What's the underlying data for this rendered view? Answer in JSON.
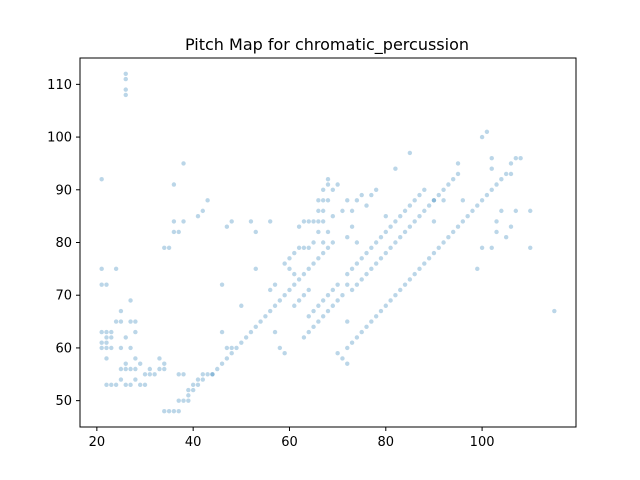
{
  "chart_data": {
    "type": "scatter",
    "title": "Pitch Map for chromatic_percussion",
    "xlabel": "",
    "ylabel": "",
    "xlim": [
      16.5,
      119.5
    ],
    "ylim": [
      45,
      115
    ],
    "xticks": [
      20,
      40,
      60,
      80,
      100
    ],
    "yticks": [
      50,
      60,
      70,
      80,
      90,
      100,
      110
    ],
    "grid": false,
    "marker_color": "#1f77b4",
    "marker_alpha": 0.3,
    "points": [
      [
        21,
        92
      ],
      [
        21,
        75
      ],
      [
        21,
        72
      ],
      [
        22,
        72
      ],
      [
        21,
        63
      ],
      [
        22,
        63
      ],
      [
        23,
        63
      ],
      [
        21,
        61
      ],
      [
        22,
        61
      ],
      [
        21,
        60
      ],
      [
        22,
        60
      ],
      [
        23,
        60
      ],
      [
        22,
        62
      ],
      [
        23,
        62
      ],
      [
        22,
        58
      ],
      [
        22,
        53
      ],
      [
        23,
        53
      ],
      [
        24,
        53
      ],
      [
        24,
        65
      ],
      [
        24,
        75
      ],
      [
        25,
        65
      ],
      [
        25,
        60
      ],
      [
        25,
        56
      ],
      [
        25,
        54
      ],
      [
        25,
        67
      ],
      [
        26,
        112
      ],
      [
        26,
        111
      ],
      [
        26,
        109
      ],
      [
        26,
        108
      ],
      [
        26,
        62
      ],
      [
        26,
        57
      ],
      [
        26,
        56
      ],
      [
        26,
        53
      ],
      [
        27,
        69
      ],
      [
        27,
        65
      ],
      [
        27,
        60
      ],
      [
        27,
        56
      ],
      [
        27,
        53
      ],
      [
        28,
        65
      ],
      [
        28,
        63
      ],
      [
        28,
        58
      ],
      [
        28,
        56
      ],
      [
        28,
        54
      ],
      [
        29,
        57
      ],
      [
        29,
        53
      ],
      [
        30,
        53
      ],
      [
        30,
        55
      ],
      [
        31,
        56
      ],
      [
        31,
        55
      ],
      [
        32,
        55
      ],
      [
        33,
        58
      ],
      [
        33,
        56
      ],
      [
        34,
        56
      ],
      [
        34,
        57
      ],
      [
        34,
        79
      ],
      [
        35,
        79
      ],
      [
        34,
        48
      ],
      [
        35,
        48
      ],
      [
        36,
        48
      ],
      [
        37,
        48
      ],
      [
        36,
        91
      ],
      [
        36,
        84
      ],
      [
        36,
        82
      ],
      [
        37,
        82
      ],
      [
        38,
        84
      ],
      [
        38,
        95
      ],
      [
        37,
        55
      ],
      [
        38,
        55
      ],
      [
        37,
        50
      ],
      [
        38,
        50
      ],
      [
        39,
        50
      ],
      [
        39,
        51
      ],
      [
        39,
        52
      ],
      [
        40,
        52
      ],
      [
        40,
        53
      ],
      [
        41,
        53
      ],
      [
        41,
        54
      ],
      [
        42,
        54
      ],
      [
        42,
        55
      ],
      [
        43,
        55
      ],
      [
        44,
        55
      ],
      [
        41,
        85
      ],
      [
        42,
        86
      ],
      [
        43,
        88
      ],
      [
        44,
        55
      ],
      [
        45,
        56
      ],
      [
        46,
        57
      ],
      [
        47,
        58
      ],
      [
        48,
        59
      ],
      [
        49,
        60
      ],
      [
        50,
        61
      ],
      [
        51,
        62
      ],
      [
        52,
        63
      ],
      [
        53,
        64
      ],
      [
        54,
        65
      ],
      [
        55,
        66
      ],
      [
        56,
        67
      ],
      [
        57,
        68
      ],
      [
        58,
        69
      ],
      [
        59,
        70
      ],
      [
        60,
        71
      ],
      [
        61,
        72
      ],
      [
        62,
        73
      ],
      [
        63,
        74
      ],
      [
        64,
        75
      ],
      [
        65,
        76
      ],
      [
        66,
        77
      ],
      [
        67,
        78
      ],
      [
        68,
        79
      ],
      [
        69,
        80
      ],
      [
        46,
        72
      ],
      [
        46,
        63
      ],
      [
        47,
        60
      ],
      [
        48,
        60
      ],
      [
        47,
        83
      ],
      [
        48,
        84
      ],
      [
        50,
        68
      ],
      [
        52,
        84
      ],
      [
        53,
        82
      ],
      [
        53,
        75
      ],
      [
        56,
        84
      ],
      [
        56,
        71
      ],
      [
        57,
        72
      ],
      [
        57,
        63
      ],
      [
        58,
        60
      ],
      [
        59,
        59
      ],
      [
        59,
        76
      ],
      [
        60,
        77
      ],
      [
        60,
        75
      ],
      [
        61,
        78
      ],
      [
        61,
        74
      ],
      [
        62,
        79
      ],
      [
        62,
        83
      ],
      [
        63,
        79
      ],
      [
        63,
        84
      ],
      [
        64,
        84
      ],
      [
        64,
        79
      ],
      [
        65,
        84
      ],
      [
        66,
        84
      ],
      [
        66,
        86
      ],
      [
        66,
        88
      ],
      [
        67,
        84
      ],
      [
        67,
        86
      ],
      [
        67,
        88
      ],
      [
        67,
        90
      ],
      [
        68,
        92
      ],
      [
        68,
        91
      ],
      [
        69,
        90
      ],
      [
        70,
        91
      ],
      [
        68,
        88
      ],
      [
        69,
        85
      ],
      [
        61,
        68
      ],
      [
        62,
        69
      ],
      [
        63,
        70
      ],
      [
        64,
        71
      ],
      [
        64,
        66
      ],
      [
        65,
        67
      ],
      [
        66,
        68
      ],
      [
        67,
        69
      ],
      [
        68,
        70
      ],
      [
        69,
        71
      ],
      [
        70,
        72
      ],
      [
        63,
        62
      ],
      [
        64,
        63
      ],
      [
        65,
        64
      ],
      [
        66,
        65
      ],
      [
        67,
        66
      ],
      [
        68,
        67
      ],
      [
        69,
        68
      ],
      [
        70,
        69
      ],
      [
        71,
        70
      ],
      [
        65,
        80
      ],
      [
        66,
        82
      ],
      [
        67,
        80
      ],
      [
        68,
        82
      ],
      [
        71,
        86
      ],
      [
        72,
        88
      ],
      [
        73,
        86
      ],
      [
        73,
        83
      ],
      [
        72,
        81
      ],
      [
        74,
        80
      ],
      [
        70,
        59
      ],
      [
        71,
        58
      ],
      [
        72,
        57
      ],
      [
        72,
        60
      ],
      [
        73,
        61
      ],
      [
        74,
        62
      ],
      [
        75,
        63
      ],
      [
        76,
        64
      ],
      [
        77,
        65
      ],
      [
        78,
        66
      ],
      [
        79,
        67
      ],
      [
        80,
        68
      ],
      [
        81,
        69
      ],
      [
        82,
        70
      ],
      [
        83,
        71
      ],
      [
        84,
        72
      ],
      [
        85,
        73
      ],
      [
        86,
        74
      ],
      [
        87,
        75
      ],
      [
        88,
        76
      ],
      [
        89,
        77
      ],
      [
        90,
        78
      ],
      [
        91,
        79
      ],
      [
        92,
        80
      ],
      [
        93,
        81
      ],
      [
        94,
        82
      ],
      [
        95,
        83
      ],
      [
        96,
        84
      ],
      [
        97,
        85
      ],
      [
        98,
        86
      ],
      [
        99,
        87
      ],
      [
        100,
        88
      ],
      [
        101,
        89
      ],
      [
        102,
        90
      ],
      [
        103,
        91
      ],
      [
        104,
        92
      ],
      [
        105,
        93
      ],
      [
        106,
        93
      ],
      [
        72,
        65
      ],
      [
        72,
        72
      ],
      [
        73,
        71
      ],
      [
        74,
        72
      ],
      [
        75,
        73
      ],
      [
        76,
        74
      ],
      [
        77,
        75
      ],
      [
        78,
        76
      ],
      [
        79,
        77
      ],
      [
        80,
        78
      ],
      [
        81,
        79
      ],
      [
        82,
        80
      ],
      [
        83,
        81
      ],
      [
        84,
        82
      ],
      [
        85,
        83
      ],
      [
        86,
        84
      ],
      [
        87,
        85
      ],
      [
        88,
        86
      ],
      [
        89,
        87
      ],
      [
        90,
        88
      ],
      [
        91,
        89
      ],
      [
        92,
        90
      ],
      [
        93,
        91
      ],
      [
        94,
        92
      ],
      [
        95,
        93
      ],
      [
        72,
        74
      ],
      [
        73,
        75
      ],
      [
        74,
        76
      ],
      [
        75,
        77
      ],
      [
        76,
        78
      ],
      [
        77,
        79
      ],
      [
        78,
        80
      ],
      [
        79,
        81
      ],
      [
        80,
        82
      ],
      [
        81,
        83
      ],
      [
        82,
        84
      ],
      [
        83,
        85
      ],
      [
        84,
        86
      ],
      [
        85,
        87
      ],
      [
        86,
        88
      ],
      [
        87,
        89
      ],
      [
        88,
        90
      ],
      [
        74,
        88
      ],
      [
        75,
        89
      ],
      [
        76,
        87
      ],
      [
        77,
        89
      ],
      [
        78,
        90
      ],
      [
        80,
        85
      ],
      [
        82,
        94
      ],
      [
        85,
        97
      ],
      [
        90,
        88
      ],
      [
        90,
        84
      ],
      [
        92,
        88
      ],
      [
        95,
        95
      ],
      [
        96,
        88
      ],
      [
        99,
        75
      ],
      [
        100,
        79
      ],
      [
        100,
        100
      ],
      [
        101,
        101
      ],
      [
        102,
        96
      ],
      [
        102,
        94
      ],
      [
        102,
        79
      ],
      [
        103,
        82
      ],
      [
        103,
        84
      ],
      [
        104,
        86
      ],
      [
        105,
        81
      ],
      [
        106,
        95
      ],
      [
        106,
        83
      ],
      [
        107,
        86
      ],
      [
        107,
        96
      ],
      [
        108,
        96
      ],
      [
        110,
        86
      ],
      [
        110,
        79
      ],
      [
        115,
        67
      ]
    ]
  }
}
